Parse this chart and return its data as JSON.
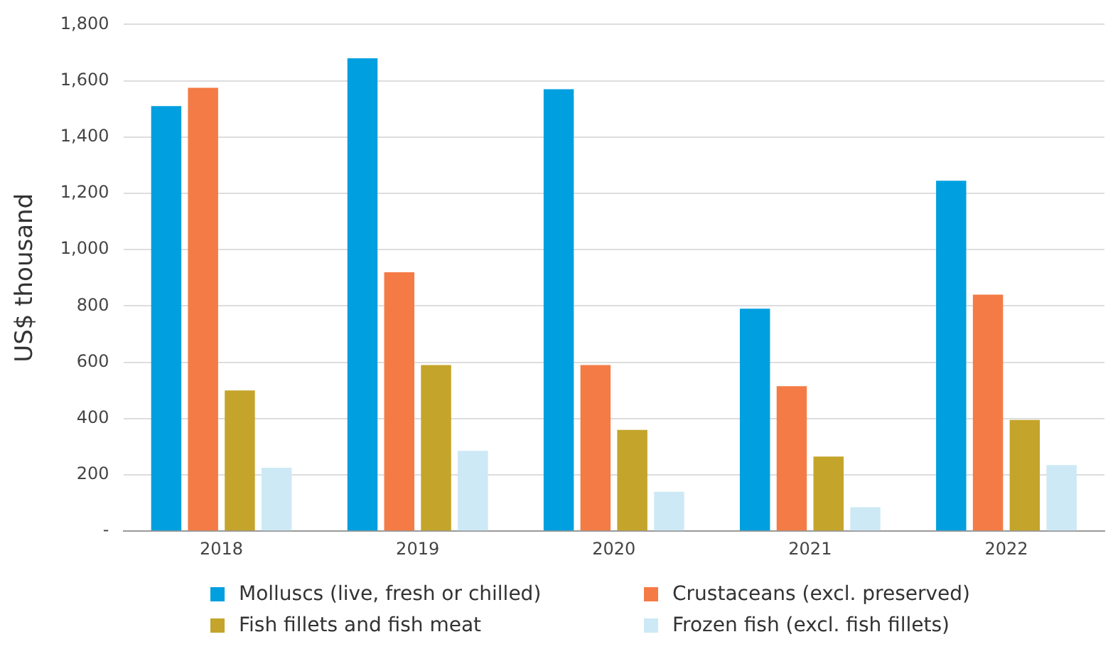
{
  "chart_data": {
    "type": "bar",
    "ylabel": "US$ thousand",
    "categories": [
      "2018",
      "2019",
      "2020",
      "2021",
      "2022"
    ],
    "series": [
      {
        "name": "Molluscs (live, fresh or chilled)",
        "color": "#009fdf",
        "values": [
          1510,
          1680,
          1570,
          790,
          1245
        ]
      },
      {
        "name": "Crustaceans (excl. preserved)",
        "color": "#f47b45",
        "values": [
          1575,
          920,
          590,
          515,
          840
        ]
      },
      {
        "name": "Fish fillets and fish meat",
        "color": "#c4a42a",
        "values": [
          500,
          590,
          360,
          265,
          395
        ]
      },
      {
        "name": "Frozen fish (excl. fish fillets)",
        "color": "#cde9f5",
        "values": [
          225,
          285,
          140,
          85,
          235
        ]
      }
    ],
    "ylim": [
      0,
      1800
    ],
    "yticks": [
      {
        "value": 0,
        "label": "-"
      },
      200,
      400,
      600,
      800,
      {
        "value": 1000,
        "label": "1,000"
      },
      {
        "value": 1200,
        "label": "1,200"
      },
      {
        "value": 1400,
        "label": "1,400"
      },
      {
        "value": 1600,
        "label": "1,600"
      },
      {
        "value": 1800,
        "label": "1,800"
      }
    ],
    "grid": "y",
    "legend": "bottom"
  }
}
